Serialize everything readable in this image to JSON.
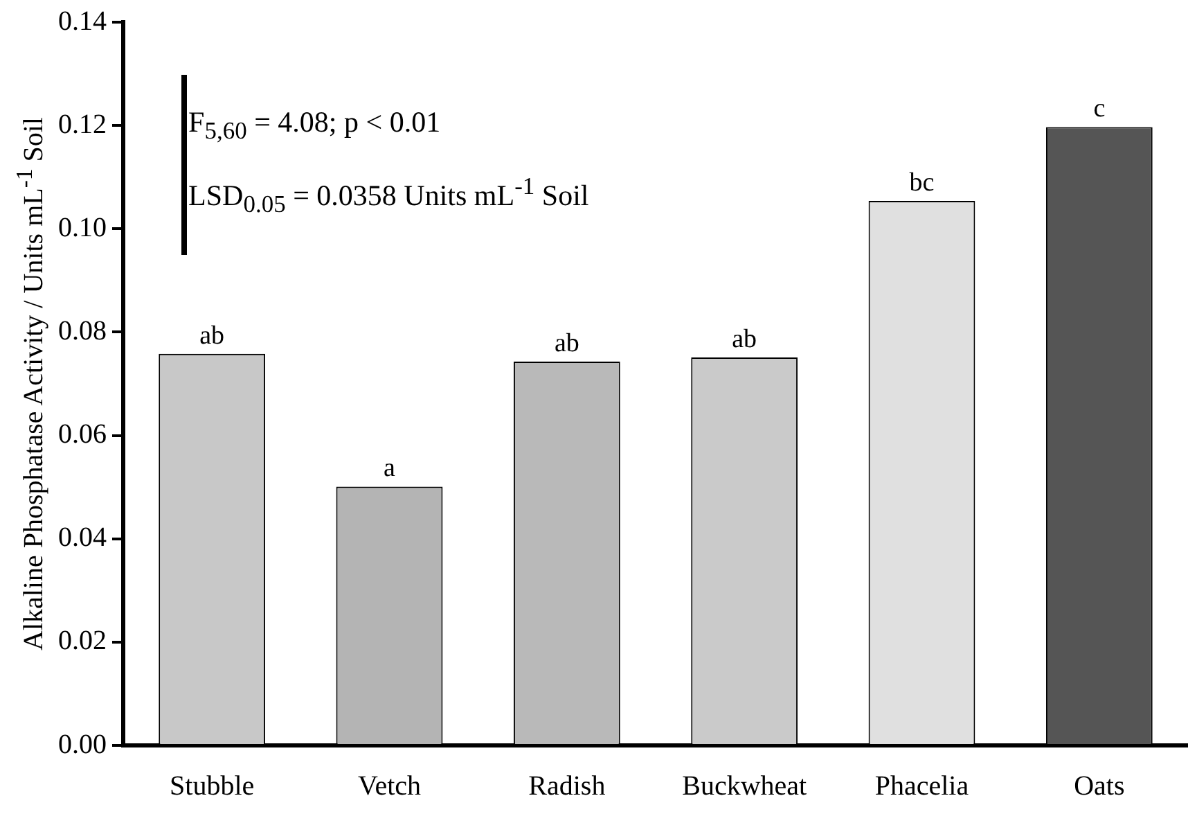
{
  "chart_data": {
    "type": "bar",
    "ylabel": "Alkaline Phosphatase Activity / Units mL$^{-1}$ Soil",
    "categories": [
      "Stubble",
      "Vetch",
      "Radish",
      "Buckwheat",
      "Phacelia",
      "Oats"
    ],
    "values": [
      0.0758,
      0.0501,
      0.0743,
      0.0751,
      0.1054,
      0.1197
    ],
    "colors": [
      "#c8c8c8",
      "#b4b4b4",
      "#b9b9b9",
      "#cacaca",
      "#e0e0e0",
      "#555555"
    ],
    "value_labels": [
      "ab",
      "a",
      "ab",
      "ab",
      "bc",
      "c"
    ],
    "ylim": [
      0,
      0.14
    ],
    "yticks": [
      {
        "value": 0,
        "label": "0.00"
      },
      {
        "value": 0.02,
        "label": "0.02"
      },
      {
        "value": 0.04,
        "label": "0.04"
      },
      {
        "value": 0.06,
        "label": "0.06"
      },
      {
        "value": 0.08,
        "label": "0.08"
      },
      {
        "value": 0.1,
        "label": "0.10"
      },
      {
        "value": 0.12,
        "label": "0.12"
      },
      {
        "value": 0.14,
        "label": "0.14"
      }
    ],
    "grid": false,
    "legend": false,
    "annotations": [
      "F$_{5,60}$ = 4.08; p < 0.01",
      "LSD$_{0.05}$ = 0.0358 Units mL$^{-1}$ Soil"
    ]
  }
}
